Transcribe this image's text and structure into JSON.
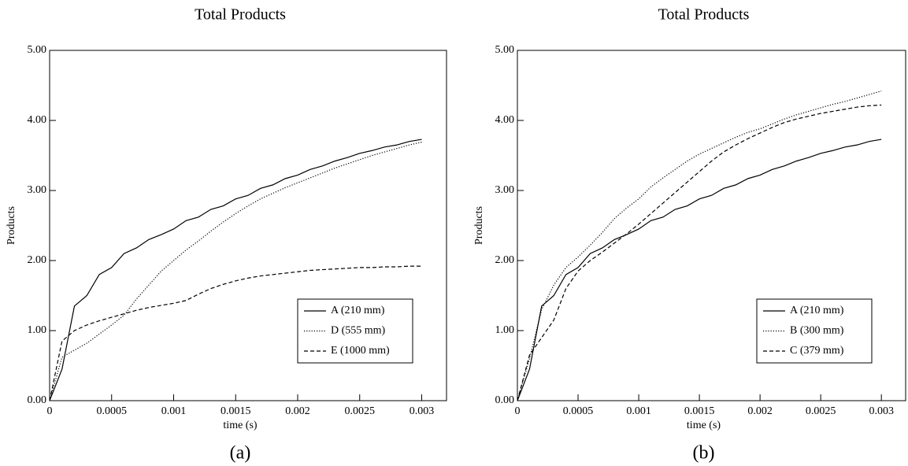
{
  "chart_data": [
    {
      "type": "line",
      "title": "Total Products",
      "xlabel": "time (s)",
      "ylabel": "Products",
      "caption": "(a)",
      "x": [
        0,
        0.0001,
        0.0002,
        0.0003,
        0.0004,
        0.0005,
        0.0006,
        0.0007,
        0.0008,
        0.0009,
        0.001,
        0.0011,
        0.0012,
        0.0013,
        0.0014,
        0.0015,
        0.0016,
        0.0017,
        0.0018,
        0.0019,
        0.002,
        0.0021,
        0.0022,
        0.0023,
        0.0024,
        0.0025,
        0.0026,
        0.0027,
        0.0028,
        0.0029,
        0.003
      ],
      "series": [
        {
          "name": "A (210 mm)",
          "color": "#000000",
          "dash": "solid",
          "values": [
            0,
            0.45,
            1.35,
            1.5,
            1.8,
            1.9,
            2.1,
            2.18,
            2.3,
            2.37,
            2.45,
            2.57,
            2.62,
            2.73,
            2.78,
            2.88,
            2.93,
            3.03,
            3.08,
            3.17,
            3.22,
            3.3,
            3.35,
            3.42,
            3.47,
            3.53,
            3.57,
            3.62,
            3.65,
            3.7,
            3.73
          ]
        },
        {
          "name": "D (555 mm)",
          "color": "#000000",
          "dash": "dotted",
          "values": [
            0,
            0.62,
            0.72,
            0.82,
            0.95,
            1.08,
            1.22,
            1.45,
            1.65,
            1.85,
            2.0,
            2.15,
            2.28,
            2.42,
            2.55,
            2.67,
            2.78,
            2.88,
            2.96,
            3.04,
            3.11,
            3.18,
            3.25,
            3.32,
            3.38,
            3.44,
            3.5,
            3.55,
            3.6,
            3.65,
            3.69
          ]
        },
        {
          "name": "E (1000 mm)",
          "color": "#000000",
          "dash": "dashed",
          "values": [
            0,
            0.85,
            1.0,
            1.08,
            1.14,
            1.19,
            1.24,
            1.29,
            1.33,
            1.36,
            1.39,
            1.43,
            1.52,
            1.6,
            1.66,
            1.71,
            1.75,
            1.78,
            1.8,
            1.82,
            1.84,
            1.86,
            1.87,
            1.88,
            1.89,
            1.9,
            1.9,
            1.91,
            1.91,
            1.92,
            1.92
          ]
        }
      ],
      "xlim": [
        0,
        0.0032
      ],
      "xticks": [
        0,
        0.0005,
        0.001,
        0.0015,
        0.002,
        0.0025,
        0.003
      ],
      "ylim": [
        0,
        5
      ],
      "yticks": [
        {
          "value": 0,
          "label": "0.00"
        },
        {
          "value": 1,
          "label": "1.00"
        },
        {
          "value": 2,
          "label": "2.00"
        },
        {
          "value": 3,
          "label": "3.00"
        },
        {
          "value": 4,
          "label": "4.00"
        },
        {
          "value": 5,
          "label": "5.00"
        }
      ],
      "legend": "lower right"
    },
    {
      "type": "line",
      "title": "Total Products",
      "xlabel": "time (s)",
      "ylabel": "Products",
      "caption": "(b)",
      "x": [
        0,
        0.0001,
        0.0002,
        0.0003,
        0.0004,
        0.0005,
        0.0006,
        0.0007,
        0.0008,
        0.0009,
        0.001,
        0.0011,
        0.0012,
        0.0013,
        0.0014,
        0.0015,
        0.0016,
        0.0017,
        0.0018,
        0.0019,
        0.002,
        0.0021,
        0.0022,
        0.0023,
        0.0024,
        0.0025,
        0.0026,
        0.0027,
        0.0028,
        0.0029,
        0.003
      ],
      "series": [
        {
          "name": "A (210 mm)",
          "color": "#000000",
          "dash": "solid",
          "values": [
            0,
            0.45,
            1.35,
            1.5,
            1.8,
            1.9,
            2.1,
            2.18,
            2.3,
            2.37,
            2.45,
            2.57,
            2.62,
            2.73,
            2.78,
            2.88,
            2.93,
            3.03,
            3.08,
            3.17,
            3.22,
            3.3,
            3.35,
            3.42,
            3.47,
            3.53,
            3.57,
            3.62,
            3.65,
            3.7,
            3.73
          ]
        },
        {
          "name": "B (300 mm)",
          "color": "#000000",
          "dash": "dotted",
          "values": [
            0,
            0.6,
            1.3,
            1.65,
            1.9,
            2.05,
            2.22,
            2.4,
            2.6,
            2.75,
            2.88,
            3.05,
            3.18,
            3.3,
            3.42,
            3.52,
            3.6,
            3.68,
            3.76,
            3.83,
            3.88,
            3.95,
            4.02,
            4.08,
            4.13,
            4.18,
            4.23,
            4.27,
            4.32,
            4.37,
            4.42
          ]
        },
        {
          "name": "C (379 mm)",
          "color": "#000000",
          "dash": "dashed",
          "values": [
            0,
            0.65,
            0.9,
            1.15,
            1.6,
            1.85,
            2.0,
            2.12,
            2.25,
            2.38,
            2.52,
            2.67,
            2.82,
            2.97,
            3.12,
            3.27,
            3.42,
            3.55,
            3.65,
            3.74,
            3.82,
            3.9,
            3.97,
            4.02,
            4.06,
            4.1,
            4.13,
            4.16,
            4.19,
            4.21,
            4.22
          ]
        }
      ],
      "xlim": [
        0,
        0.0032
      ],
      "xticks": [
        0,
        0.0005,
        0.001,
        0.0015,
        0.002,
        0.0025,
        0.003
      ],
      "ylim": [
        0,
        5
      ],
      "yticks": [
        {
          "value": 0,
          "label": "0.00"
        },
        {
          "value": 1,
          "label": "1.00"
        },
        {
          "value": 2,
          "label": "2.00"
        },
        {
          "value": 3,
          "label": "3.00"
        },
        {
          "value": 4,
          "label": "4.00"
        },
        {
          "value": 5,
          "label": "5.00"
        }
      ],
      "legend": "lower right"
    }
  ]
}
